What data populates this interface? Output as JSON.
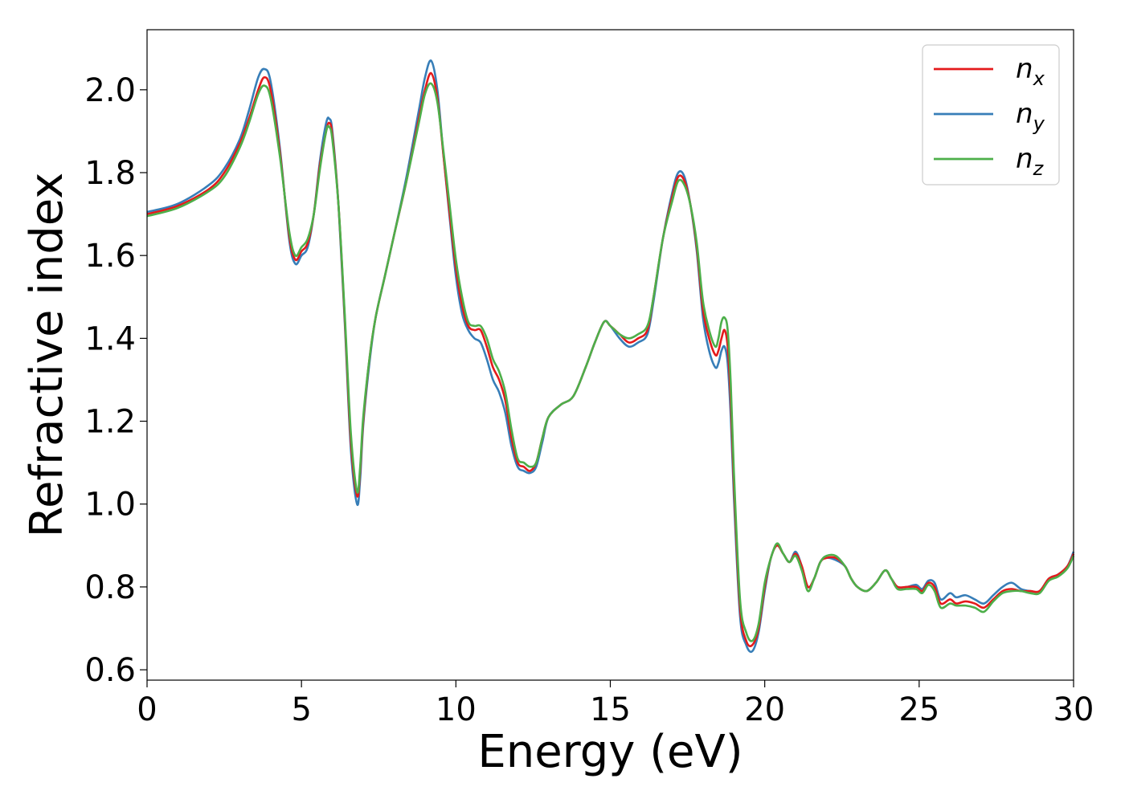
{
  "chart_data": {
    "type": "line",
    "xlabel": "Energy (eV)",
    "ylabel": "Refractive index",
    "xlim": [
      0,
      30
    ],
    "ylim": [
      0.575,
      2.145
    ],
    "xticks": [
      0,
      5,
      10,
      15,
      20,
      25,
      30
    ],
    "xtick_labels": [
      "0",
      "5",
      "10",
      "15",
      "20",
      "25",
      "30"
    ],
    "yticks": [
      0.6,
      0.8,
      1.0,
      1.2,
      1.4,
      1.6,
      1.8,
      2.0
    ],
    "ytick_labels": [
      "0.6",
      "0.8",
      "1.0",
      "1.2",
      "1.4",
      "1.6",
      "1.8",
      "2.0"
    ],
    "grid": false,
    "legend_position": "top-right",
    "series": [
      {
        "name": "n",
        "subscript": "x",
        "color": "#e41a1c",
        "x": [
          0,
          1,
          2,
          2.5,
          3,
          3.3,
          3.6,
          3.8,
          4.0,
          4.3,
          4.6,
          4.8,
          5.0,
          5.2,
          5.4,
          5.6,
          5.8,
          5.9,
          6.0,
          6.2,
          6.4,
          6.6,
          6.8,
          6.9,
          7.0,
          7.2,
          7.4,
          7.7,
          8.0,
          8.4,
          8.8,
          9.0,
          9.2,
          9.4,
          9.6,
          9.8,
          10.0,
          10.2,
          10.4,
          10.6,
          10.8,
          11.0,
          11.2,
          11.4,
          11.6,
          11.8,
          12.0,
          12.2,
          12.4,
          12.6,
          12.8,
          13.0,
          13.4,
          13.8,
          14.2,
          14.5,
          14.8,
          15.0,
          15.3,
          15.6,
          15.9,
          16.2,
          16.4,
          16.7,
          17.0,
          17.2,
          17.4,
          17.6,
          17.8,
          18.0,
          18.2,
          18.4,
          18.5,
          18.6,
          18.7,
          18.8,
          18.9,
          19.0,
          19.2,
          19.4,
          19.6,
          19.8,
          20.0,
          20.2,
          20.4,
          20.6,
          20.8,
          21.0,
          21.2,
          21.4,
          21.6,
          21.8,
          22.0,
          22.3,
          22.6,
          22.8,
          23.0,
          23.3,
          23.6,
          23.9,
          24.1,
          24.3,
          24.6,
          24.9,
          25.1,
          25.3,
          25.5,
          25.7,
          26.0,
          26.2,
          26.5,
          26.8,
          27.1,
          27.4,
          27.7,
          28.0,
          28.3,
          28.6,
          28.9,
          29.2,
          29.5,
          29.8,
          30.0
        ],
        "values": [
          1.7,
          1.72,
          1.76,
          1.8,
          1.87,
          1.93,
          2.0,
          2.03,
          2.0,
          1.85,
          1.65,
          1.59,
          1.61,
          1.63,
          1.7,
          1.82,
          1.9,
          1.92,
          1.89,
          1.72,
          1.45,
          1.15,
          1.02,
          1.08,
          1.2,
          1.35,
          1.45,
          1.55,
          1.65,
          1.78,
          1.93,
          2.0,
          2.04,
          1.98,
          1.84,
          1.7,
          1.57,
          1.48,
          1.43,
          1.42,
          1.42,
          1.38,
          1.33,
          1.3,
          1.25,
          1.16,
          1.1,
          1.09,
          1.08,
          1.1,
          1.16,
          1.21,
          1.24,
          1.26,
          1.33,
          1.39,
          1.44,
          1.43,
          1.41,
          1.39,
          1.4,
          1.42,
          1.5,
          1.64,
          1.74,
          1.79,
          1.78,
          1.72,
          1.62,
          1.47,
          1.4,
          1.36,
          1.37,
          1.4,
          1.42,
          1.38,
          1.25,
          1.05,
          0.75,
          0.67,
          0.66,
          0.7,
          0.8,
          0.87,
          0.9,
          0.88,
          0.86,
          0.88,
          0.85,
          0.8,
          0.82,
          0.86,
          0.87,
          0.87,
          0.85,
          0.82,
          0.8,
          0.79,
          0.81,
          0.84,
          0.82,
          0.8,
          0.8,
          0.8,
          0.79,
          0.81,
          0.8,
          0.76,
          0.77,
          0.76,
          0.765,
          0.76,
          0.75,
          0.77,
          0.79,
          0.795,
          0.79,
          0.79,
          0.79,
          0.82,
          0.83,
          0.85,
          0.88
        ]
      },
      {
        "name": "n",
        "subscript": "y",
        "color": "#377eb8",
        "x": [
          0,
          1,
          2,
          2.5,
          3,
          3.3,
          3.6,
          3.8,
          4.0,
          4.3,
          4.6,
          4.8,
          5.0,
          5.2,
          5.4,
          5.6,
          5.8,
          5.9,
          6.0,
          6.2,
          6.4,
          6.6,
          6.8,
          6.9,
          7.0,
          7.2,
          7.4,
          7.7,
          8.0,
          8.4,
          8.8,
          9.0,
          9.2,
          9.4,
          9.6,
          9.8,
          10.0,
          10.2,
          10.4,
          10.6,
          10.8,
          11.0,
          11.2,
          11.4,
          11.6,
          11.8,
          12.0,
          12.2,
          12.4,
          12.6,
          12.8,
          13.0,
          13.4,
          13.8,
          14.2,
          14.5,
          14.8,
          15.0,
          15.3,
          15.6,
          15.9,
          16.2,
          16.4,
          16.7,
          17.0,
          17.2,
          17.4,
          17.6,
          17.8,
          18.0,
          18.2,
          18.4,
          18.5,
          18.6,
          18.7,
          18.8,
          18.9,
          19.0,
          19.2,
          19.4,
          19.6,
          19.8,
          20.0,
          20.2,
          20.4,
          20.6,
          20.8,
          21.0,
          21.2,
          21.4,
          21.6,
          21.8,
          22.0,
          22.3,
          22.6,
          22.8,
          23.0,
          23.3,
          23.6,
          23.9,
          24.1,
          24.3,
          24.6,
          24.9,
          25.1,
          25.3,
          25.5,
          25.7,
          26.0,
          26.2,
          26.5,
          26.8,
          27.1,
          27.4,
          27.7,
          28.0,
          28.3,
          28.6,
          28.9,
          29.2,
          29.5,
          29.8,
          30.0
        ],
        "values": [
          1.705,
          1.725,
          1.77,
          1.81,
          1.88,
          1.95,
          2.03,
          2.05,
          2.02,
          1.86,
          1.64,
          1.58,
          1.6,
          1.62,
          1.7,
          1.83,
          1.92,
          1.93,
          1.9,
          1.72,
          1.44,
          1.13,
          1.0,
          1.06,
          1.19,
          1.34,
          1.45,
          1.55,
          1.65,
          1.79,
          1.95,
          2.03,
          2.07,
          2.0,
          1.84,
          1.69,
          1.55,
          1.46,
          1.42,
          1.4,
          1.39,
          1.35,
          1.3,
          1.27,
          1.22,
          1.14,
          1.09,
          1.08,
          1.075,
          1.09,
          1.15,
          1.21,
          1.24,
          1.26,
          1.33,
          1.39,
          1.44,
          1.43,
          1.4,
          1.38,
          1.39,
          1.41,
          1.49,
          1.64,
          1.75,
          1.8,
          1.79,
          1.72,
          1.61,
          1.45,
          1.37,
          1.33,
          1.34,
          1.37,
          1.38,
          1.34,
          1.21,
          1.02,
          0.73,
          0.66,
          0.645,
          0.69,
          0.79,
          0.87,
          0.9,
          0.88,
          0.86,
          0.885,
          0.85,
          0.8,
          0.82,
          0.86,
          0.87,
          0.865,
          0.85,
          0.82,
          0.8,
          0.79,
          0.81,
          0.84,
          0.82,
          0.8,
          0.8,
          0.805,
          0.795,
          0.815,
          0.81,
          0.77,
          0.785,
          0.775,
          0.78,
          0.77,
          0.76,
          0.78,
          0.8,
          0.81,
          0.795,
          0.79,
          0.79,
          0.82,
          0.83,
          0.85,
          0.885
        ]
      },
      {
        "name": "n",
        "subscript": "z",
        "color": "#4daf4a",
        "x": [
          0,
          1,
          2,
          2.5,
          3,
          3.3,
          3.6,
          3.8,
          4.0,
          4.3,
          4.6,
          4.8,
          5.0,
          5.2,
          5.4,
          5.6,
          5.8,
          5.9,
          6.0,
          6.2,
          6.4,
          6.6,
          6.8,
          6.9,
          7.0,
          7.2,
          7.4,
          7.7,
          8.0,
          8.4,
          8.8,
          9.0,
          9.2,
          9.4,
          9.6,
          9.8,
          10.0,
          10.2,
          10.4,
          10.6,
          10.8,
          11.0,
          11.2,
          11.4,
          11.6,
          11.8,
          12.0,
          12.2,
          12.4,
          12.6,
          12.8,
          13.0,
          13.4,
          13.8,
          14.2,
          14.5,
          14.8,
          15.0,
          15.3,
          15.6,
          15.9,
          16.2,
          16.4,
          16.7,
          17.0,
          17.2,
          17.4,
          17.6,
          17.8,
          18.0,
          18.2,
          18.4,
          18.5,
          18.6,
          18.7,
          18.8,
          18.9,
          19.0,
          19.2,
          19.4,
          19.6,
          19.8,
          20.0,
          20.2,
          20.4,
          20.6,
          20.8,
          21.0,
          21.2,
          21.4,
          21.6,
          21.8,
          22.0,
          22.3,
          22.6,
          22.8,
          23.0,
          23.3,
          23.6,
          23.9,
          24.1,
          24.3,
          24.6,
          24.9,
          25.1,
          25.3,
          25.5,
          25.7,
          26.0,
          26.2,
          26.5,
          26.8,
          27.1,
          27.4,
          27.7,
          28.0,
          28.3,
          28.6,
          28.9,
          29.2,
          29.5,
          29.8,
          30.0
        ],
        "values": [
          1.695,
          1.715,
          1.755,
          1.79,
          1.86,
          1.92,
          1.99,
          2.01,
          1.98,
          1.84,
          1.66,
          1.6,
          1.62,
          1.64,
          1.7,
          1.81,
          1.9,
          1.91,
          1.88,
          1.72,
          1.46,
          1.17,
          1.03,
          1.09,
          1.21,
          1.35,
          1.45,
          1.55,
          1.65,
          1.78,
          1.92,
          1.99,
          2.015,
          1.97,
          1.85,
          1.72,
          1.59,
          1.5,
          1.44,
          1.43,
          1.43,
          1.4,
          1.35,
          1.32,
          1.27,
          1.18,
          1.11,
          1.1,
          1.09,
          1.1,
          1.16,
          1.21,
          1.24,
          1.26,
          1.33,
          1.39,
          1.44,
          1.43,
          1.41,
          1.4,
          1.41,
          1.43,
          1.5,
          1.64,
          1.73,
          1.78,
          1.77,
          1.72,
          1.63,
          1.49,
          1.42,
          1.38,
          1.4,
          1.44,
          1.45,
          1.42,
          1.29,
          1.08,
          0.77,
          0.69,
          0.67,
          0.71,
          0.81,
          0.87,
          0.905,
          0.88,
          0.86,
          0.875,
          0.84,
          0.79,
          0.82,
          0.86,
          0.875,
          0.875,
          0.85,
          0.82,
          0.8,
          0.79,
          0.81,
          0.84,
          0.82,
          0.795,
          0.795,
          0.795,
          0.785,
          0.805,
          0.79,
          0.75,
          0.76,
          0.755,
          0.755,
          0.75,
          0.74,
          0.765,
          0.785,
          0.79,
          0.79,
          0.785,
          0.785,
          0.815,
          0.825,
          0.845,
          0.875
        ]
      }
    ]
  }
}
